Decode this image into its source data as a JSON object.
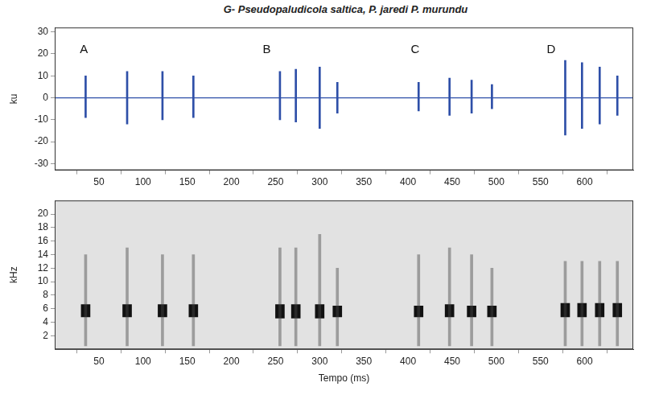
{
  "title": "G- Pseudopaludicola saltica, P. jaredi P. murundu",
  "chart_data": [
    {
      "type": "oscillogram",
      "y_label": "ku",
      "color": "#2e4fa8",
      "xlim": [
        0,
        655
      ],
      "xticks": [
        50,
        100,
        150,
        200,
        250,
        300,
        350,
        400,
        450,
        500,
        550,
        600
      ],
      "ylim": [
        -33,
        32
      ],
      "yticks": [
        -30,
        -20,
        -10,
        0,
        10,
        20,
        30
      ],
      "grid": false,
      "baseline": 0,
      "pulses": [
        {
          "t": 35,
          "max": 10,
          "min": -9
        },
        {
          "t": 82,
          "max": 12,
          "min": -12
        },
        {
          "t": 122,
          "max": 12,
          "min": -10
        },
        {
          "t": 157,
          "max": 10,
          "min": -9
        },
        {
          "t": 255,
          "max": 12,
          "min": -10
        },
        {
          "t": 273,
          "max": 13,
          "min": -11
        },
        {
          "t": 300,
          "max": 14,
          "min": -14
        },
        {
          "t": 320,
          "max": 7,
          "min": -7
        },
        {
          "t": 412,
          "max": 7,
          "min": -6
        },
        {
          "t": 447,
          "max": 9,
          "min": -8
        },
        {
          "t": 472,
          "max": 8,
          "min": -7
        },
        {
          "t": 495,
          "max": 6,
          "min": -5
        },
        {
          "t": 578,
          "max": 17,
          "min": -17
        },
        {
          "t": 597,
          "max": 16,
          "min": -14
        },
        {
          "t": 617,
          "max": 14,
          "min": -12
        },
        {
          "t": 637,
          "max": 10,
          "min": -8
        }
      ],
      "annotations": [
        {
          "text": "A",
          "x": 33,
          "y": 22
        },
        {
          "text": "B",
          "x": 240,
          "y": 22
        },
        {
          "text": "C",
          "x": 408,
          "y": 22
        },
        {
          "text": "D",
          "x": 562,
          "y": 22
        }
      ]
    },
    {
      "type": "spectrogram",
      "y_label": "kHz",
      "x_label": "Tempo (ms)",
      "xlim": [
        0,
        655
      ],
      "xticks": [
        50,
        100,
        150,
        200,
        250,
        300,
        350,
        400,
        450,
        500,
        550,
        600
      ],
      "ylim": [
        0,
        22
      ],
      "yticks": [
        2,
        4,
        6,
        8,
        10,
        12,
        14,
        16,
        18,
        20
      ],
      "grid": false,
      "pulses": [
        {
          "t": 35,
          "band": [
            4.8,
            6.6
          ],
          "range": [
            0.5,
            14
          ]
        },
        {
          "t": 82,
          "band": [
            4.8,
            6.6
          ],
          "range": [
            0.5,
            15
          ]
        },
        {
          "t": 122,
          "band": [
            4.8,
            6.6
          ],
          "range": [
            0.5,
            14
          ]
        },
        {
          "t": 157,
          "band": [
            4.8,
            6.6
          ],
          "range": [
            0.5,
            14
          ]
        },
        {
          "t": 255,
          "band": [
            4.6,
            6.6
          ],
          "range": [
            0.5,
            15
          ]
        },
        {
          "t": 273,
          "band": [
            4.6,
            6.6
          ],
          "range": [
            0.5,
            15
          ]
        },
        {
          "t": 300,
          "band": [
            4.6,
            6.6
          ],
          "range": [
            0.5,
            17
          ]
        },
        {
          "t": 320,
          "band": [
            4.8,
            6.4
          ],
          "range": [
            0.5,
            12
          ]
        },
        {
          "t": 412,
          "band": [
            4.8,
            6.4
          ],
          "range": [
            0.5,
            14
          ]
        },
        {
          "t": 447,
          "band": [
            4.8,
            6.6
          ],
          "range": [
            0.5,
            15
          ]
        },
        {
          "t": 472,
          "band": [
            4.8,
            6.4
          ],
          "range": [
            0.5,
            14
          ]
        },
        {
          "t": 495,
          "band": [
            4.8,
            6.4
          ],
          "range": [
            0.5,
            12
          ]
        },
        {
          "t": 578,
          "band": [
            4.8,
            6.8
          ],
          "range": [
            0.5,
            13
          ]
        },
        {
          "t": 597,
          "band": [
            4.8,
            6.8
          ],
          "range": [
            0.5,
            13
          ]
        },
        {
          "t": 617,
          "band": [
            4.8,
            6.8
          ],
          "range": [
            0.5,
            13
          ]
        },
        {
          "t": 637,
          "band": [
            4.8,
            6.8
          ],
          "range": [
            0.5,
            13
          ]
        }
      ]
    }
  ]
}
